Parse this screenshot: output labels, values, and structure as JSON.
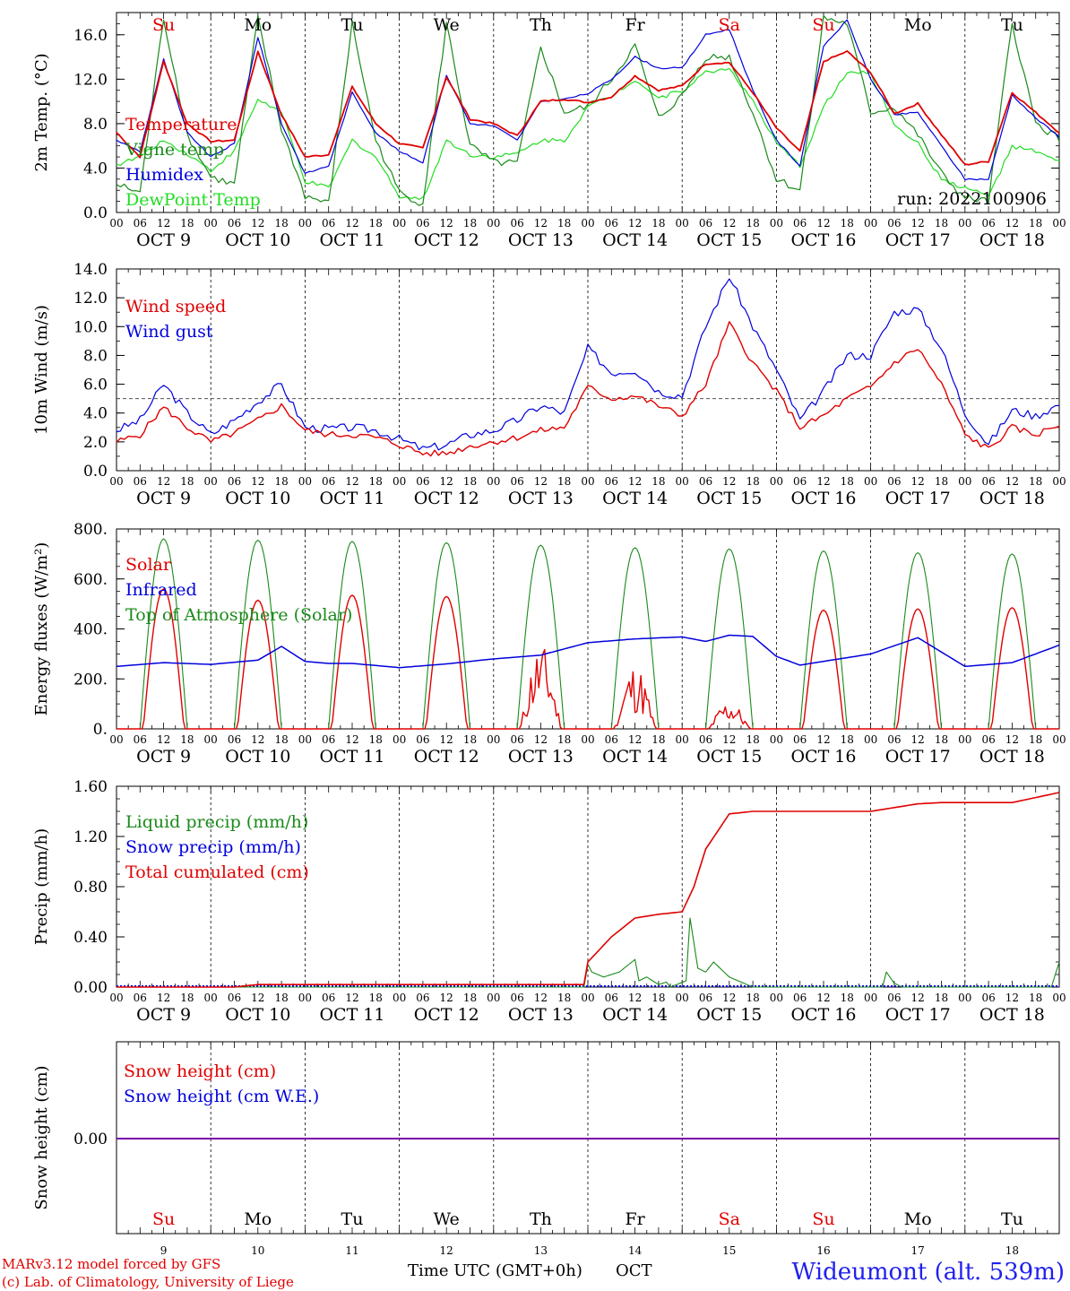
{
  "footer": {
    "model_line": "MARv3.12 model forced by GFS",
    "lab_line": "(c) Lab. of Climatology, University of Liege",
    "xlabel": "Time UTC (GMT+0h)",
    "month": "OCT",
    "station": "Wideumont (alt. 539m)"
  },
  "days": {
    "weekdays": [
      "Su",
      "Mo",
      "Tu",
      "We",
      "Th",
      "Fr",
      "Sa",
      "Su",
      "Mo",
      "Tu"
    ],
    "weekday_colors": [
      "#e00000",
      "#000000",
      "#000000",
      "#000000",
      "#000000",
      "#000000",
      "#e00000",
      "#e00000",
      "#000000",
      "#000000"
    ],
    "dates": [
      "OCT  9",
      "OCT 10",
      "OCT 11",
      "OCT 12",
      "OCT 13",
      "OCT 14",
      "OCT 15",
      "OCT 16",
      "OCT 17",
      "OCT 18"
    ],
    "date_numbers": [
      "9",
      "10",
      "11",
      "12",
      "13",
      "14",
      "15",
      "16",
      "17",
      "18"
    ],
    "hour_ticks": [
      "00",
      "06",
      "12",
      "18"
    ],
    "final_hour_tick": "00"
  },
  "colors": {
    "red": "#e00000",
    "blue": "#0000dd",
    "dark_green": "#1a8a1a",
    "light_green": "#22dd22",
    "purple": "#7a00a8"
  },
  "chart_data": [
    {
      "id": "temp",
      "type": "line",
      "ylabel": "2m Temp. (°C)",
      "ylim": [
        0,
        18
      ],
      "yticks": [
        "0.0",
        "4.0",
        "8.0",
        "12.0",
        "16.0"
      ],
      "annotation": "run: 2022100906",
      "x_hours": [
        0,
        6,
        12,
        18,
        24,
        30,
        36,
        42,
        48,
        54,
        60,
        66,
        72,
        78,
        84,
        90,
        96,
        102,
        108,
        114,
        120,
        126,
        132,
        138,
        144,
        150,
        156,
        162,
        168,
        174,
        180,
        186,
        192,
        198,
        204,
        210,
        216,
        222,
        228,
        234,
        240
      ],
      "series": [
        {
          "name": "Temperature",
          "color": "#e00000",
          "values": [
            7.2,
            5.0,
            13.6,
            8.0,
            6.4,
            6.5,
            14.5,
            8.8,
            5.0,
            5.2,
            11.3,
            8.0,
            6.2,
            5.8,
            12.2,
            8.4,
            8.0,
            6.9,
            10.0,
            10.2,
            9.9,
            10.4,
            12.3,
            11.0,
            11.4,
            13.4,
            13.5,
            10.8,
            7.6,
            5.5,
            13.6,
            14.5,
            12.6,
            8.9,
            9.8,
            7.0,
            4.3,
            4.6,
            10.8,
            9.0,
            7.2
          ]
        },
        {
          "name": "Vigne temp",
          "color": "#1a8a1a",
          "values": [
            2.5,
            1.8,
            17.5,
            7.0,
            3.2,
            2.5,
            17.5,
            7.5,
            1.5,
            0.8,
            17.0,
            6.5,
            1.8,
            0.8,
            17.0,
            6.0,
            4.5,
            4.4,
            14.9,
            9.0,
            9.5,
            12.0,
            15.0,
            8.5,
            10.5,
            14.0,
            14.0,
            9.0,
            3.0,
            2.0,
            17.5,
            17.0,
            9.0,
            9.5,
            7.0,
            3.5,
            1.3,
            1.0,
            17.0,
            8.0,
            6.7
          ]
        },
        {
          "name": "Humidex",
          "color": "#0000dd",
          "values": [
            6.5,
            5.5,
            13.8,
            7.2,
            5.0,
            6.2,
            15.8,
            8.0,
            3.5,
            4.2,
            10.8,
            7.2,
            5.5,
            4.5,
            12.4,
            8.0,
            7.8,
            6.5,
            10.0,
            10.2,
            10.7,
            12.0,
            14.0,
            13.0,
            13.0,
            16.0,
            16.5,
            11.0,
            6.5,
            4.2,
            15.0,
            17.3,
            12.0,
            8.8,
            9.0,
            6.0,
            3.0,
            3.0,
            10.6,
            8.5,
            6.8
          ]
        },
        {
          "name": "DewPoint Temp",
          "color": "#22dd22",
          "values": [
            4.3,
            5.0,
            6.5,
            5.3,
            3.8,
            5.5,
            10.2,
            9.0,
            2.8,
            2.2,
            6.5,
            5.0,
            1.5,
            1.2,
            6.5,
            5.2,
            5.0,
            5.3,
            6.5,
            6.5,
            9.5,
            10.5,
            12.0,
            10.3,
            11.0,
            12.6,
            13.0,
            10.0,
            6.2,
            4.2,
            9.5,
            12.6,
            12.5,
            8.0,
            6.2,
            3.0,
            2.2,
            1.5,
            5.9,
            5.5,
            4.5
          ]
        }
      ]
    },
    {
      "id": "wind",
      "type": "line",
      "ylabel": "10m Wind (m/s)",
      "ylim": [
        0,
        14
      ],
      "yticks": [
        "0.0",
        "2.0",
        "4.0",
        "6.0",
        "8.0",
        "10.0",
        "12.0",
        "14.0"
      ],
      "reference_line": 5,
      "x_hours": [
        0,
        6,
        12,
        18,
        24,
        30,
        36,
        42,
        48,
        54,
        60,
        66,
        72,
        78,
        84,
        90,
        96,
        102,
        108,
        114,
        120,
        126,
        132,
        138,
        144,
        150,
        156,
        162,
        168,
        174,
        180,
        186,
        192,
        198,
        204,
        210,
        216,
        222,
        228,
        234,
        240
      ],
      "series": [
        {
          "name": "Wind speed",
          "color": "#e00000",
          "values": [
            2.0,
            2.5,
            4.4,
            3.0,
            2.0,
            2.6,
            3.5,
            4.5,
            2.8,
            2.5,
            2.5,
            2.3,
            1.8,
            1.2,
            1.2,
            1.7,
            2.0,
            2.3,
            2.8,
            3.0,
            5.8,
            5.0,
            5.2,
            4.5,
            3.8,
            6.0,
            10.2,
            7.5,
            5.5,
            3.0,
            3.8,
            5.0,
            5.8,
            7.5,
            8.5,
            6.0,
            2.5,
            1.5,
            3.0,
            2.5,
            3.2
          ]
        },
        {
          "name": "Wind gust",
          "color": "#0000dd",
          "values": [
            2.8,
            3.5,
            6.0,
            4.0,
            2.5,
            3.5,
            4.8,
            6.0,
            3.0,
            2.9,
            3.0,
            2.8,
            2.2,
            1.5,
            1.8,
            2.5,
            2.8,
            3.5,
            4.5,
            4.0,
            8.5,
            6.8,
            7.0,
            5.5,
            5.2,
            10.0,
            13.5,
            10.0,
            7.0,
            3.5,
            5.5,
            8.0,
            8.0,
            11.0,
            11.2,
            8.5,
            4.0,
            1.8,
            4.2,
            3.8,
            4.6
          ]
        }
      ]
    },
    {
      "id": "flux",
      "type": "line",
      "ylabel": "Energy fluxes (W/m²)",
      "ylim": [
        0,
        800
      ],
      "yticks": [
        "0.",
        "200.",
        "400.",
        "600.",
        "800."
      ],
      "solar_peaks_by_day": [
        560,
        515,
        535,
        530,
        300,
        230,
        100,
        475,
        480,
        485
      ],
      "toa_peaks_by_day": [
        760,
        755,
        750,
        745,
        735,
        725,
        720,
        712,
        705,
        700
      ],
      "infrared_x_hours": [
        0,
        12,
        24,
        36,
        42,
        48,
        54,
        60,
        72,
        84,
        96,
        108,
        120,
        132,
        144,
        150,
        156,
        162,
        168,
        174,
        180,
        192,
        204,
        216,
        228,
        240
      ],
      "infrared_values": [
        250,
        265,
        258,
        275,
        330,
        270,
        262,
        262,
        245,
        260,
        280,
        295,
        345,
        360,
        368,
        350,
        375,
        370,
        290,
        255,
        270,
        300,
        365,
        250,
        265,
        335
      ],
      "series": [
        {
          "name": "Solar",
          "color": "#e00000"
        },
        {
          "name": "Infrared",
          "color": "#0000dd"
        },
        {
          "name": "Top of Atmosphere (Solar)",
          "color": "#1a8a1a"
        }
      ]
    },
    {
      "id": "precip",
      "type": "line",
      "ylabel": "Precip (mm/h)",
      "ylim": [
        0,
        1.6
      ],
      "yticks": [
        "0.00",
        "0.40",
        "0.80",
        "1.20",
        "1.60"
      ],
      "cumulated_x_hours": [
        0,
        30,
        36,
        48,
        60,
        72,
        96,
        119,
        120,
        126,
        132,
        138,
        144,
        147,
        150,
        156,
        162,
        168,
        180,
        192,
        204,
        210,
        216,
        228,
        240
      ],
      "cumulated_values": [
        0.0,
        0.0,
        0.02,
        0.02,
        0.02,
        0.02,
        0.02,
        0.02,
        0.2,
        0.4,
        0.55,
        0.58,
        0.6,
        0.8,
        1.1,
        1.38,
        1.4,
        1.4,
        1.4,
        1.4,
        1.46,
        1.47,
        1.47,
        1.47,
        1.55
      ],
      "liquid_x_hours": [
        0,
        119,
        120,
        121,
        124,
        128,
        132,
        133,
        135,
        138,
        140,
        141,
        145,
        146,
        148,
        150,
        152,
        156,
        159,
        162,
        195,
        196,
        198,
        200,
        238,
        240
      ],
      "liquid_values": [
        0,
        0,
        0.18,
        0.12,
        0.08,
        0.12,
        0.22,
        0.05,
        0.08,
        0.02,
        0.04,
        0.0,
        0.05,
        0.55,
        0.15,
        0.12,
        0.2,
        0.08,
        0.04,
        0.0,
        0.0,
        0.12,
        0.03,
        0.0,
        0.0,
        0.2
      ],
      "series": [
        {
          "name": "Liquid precip (mm/h)",
          "color": "#1a8a1a"
        },
        {
          "name": "Snow precip (mm/h)",
          "color": "#0000dd"
        },
        {
          "name": "Total cumulated (cm)",
          "color": "#e00000"
        }
      ]
    },
    {
      "id": "snow",
      "type": "line",
      "ylabel": "Snow height (cm)",
      "ytick": "0.00",
      "value": 0.0,
      "series": [
        {
          "name": "Snow height (cm)",
          "color": "#e00000"
        },
        {
          "name": "Snow height (cm W.E.)",
          "color": "#0000dd"
        }
      ]
    }
  ]
}
